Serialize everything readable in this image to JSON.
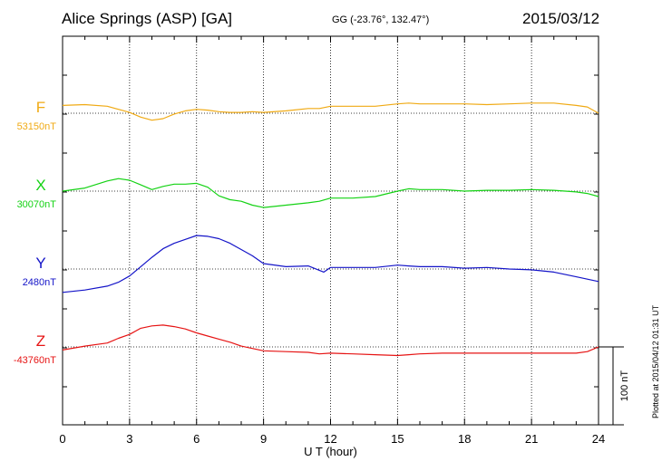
{
  "header": {
    "title": "Alice Springs (ASP)  [GA]",
    "coords": "GG (-23.76°, 132.47°)",
    "date": "2015/03/12"
  },
  "plot_note": "Plotted at 2015/04/12 01:31  UT",
  "colors": {
    "F": "#f0aa14",
    "X": "#14d214",
    "Y": "#1414c8",
    "Z": "#e61414"
  },
  "chart_data": {
    "type": "line",
    "xlabel": "U T (hour)",
    "xlim": [
      0,
      24
    ],
    "xticks": [
      0,
      3,
      6,
      9,
      12,
      15,
      18,
      21,
      24
    ],
    "scale_bar_label": "100 nT",
    "scale_bar_nT": 100,
    "series": [
      {
        "name": "F",
        "baseline_label": "53150nT",
        "baseline_nT": 53150,
        "x": [
          0,
          1,
          2,
          2.5,
          3,
          3.5,
          4,
          4.5,
          5,
          5.5,
          6,
          6.5,
          7,
          7.5,
          8,
          8.5,
          9,
          10,
          11,
          11.5,
          12,
          13,
          14,
          15,
          15.5,
          16,
          17,
          18,
          19,
          20,
          21,
          22,
          23,
          23.5,
          24
        ],
        "y": [
          53160,
          53161,
          53159,
          53155,
          53151,
          53145,
          53141,
          53143,
          53149,
          53153,
          53155,
          53154,
          53152,
          53151,
          53151,
          53152,
          53151,
          53153,
          53156,
          53156,
          53159,
          53159,
          53159,
          53162,
          53163,
          53162,
          53162,
          53162,
          53161,
          53162,
          53163,
          53163,
          53160,
          53158,
          53150
        ]
      },
      {
        "name": "X",
        "baseline_label": "30070nT",
        "baseline_nT": 30070,
        "x": [
          0,
          1,
          2,
          2.5,
          3,
          3.5,
          4,
          4.5,
          5,
          5.5,
          6,
          6.5,
          7,
          7.5,
          8,
          8.5,
          9,
          10,
          11,
          11.5,
          12,
          13,
          14,
          15,
          15.5,
          16,
          17,
          18,
          19,
          20,
          21,
          22,
          23,
          23.5,
          24
        ],
        "y": [
          30070,
          30074,
          30083,
          30086,
          30084,
          30078,
          30072,
          30076,
          30079,
          30079,
          30080,
          30075,
          30064,
          30059,
          30057,
          30052,
          30049,
          30052,
          30055,
          30057,
          30061,
          30061,
          30063,
          30070,
          30073,
          30072,
          30072,
          30070,
          30071,
          30071,
          30072,
          30071,
          30069,
          30067,
          30063
        ]
      },
      {
        "name": "Y",
        "baseline_label": "2480nT",
        "baseline_nT": 2480,
        "x": [
          0,
          1,
          2,
          2.5,
          3,
          3.5,
          4,
          4.5,
          5,
          5.5,
          6,
          6.5,
          7,
          7.5,
          8,
          8.5,
          9,
          10,
          11,
          11.7,
          12,
          13,
          14,
          15,
          15.5,
          16,
          17,
          18,
          19,
          20,
          21,
          22,
          23,
          23.5,
          24
        ],
        "y": [
          2450,
          2453,
          2458,
          2463,
          2471,
          2483,
          2495,
          2506,
          2513,
          2518,
          2523,
          2522,
          2519,
          2513,
          2505,
          2497,
          2487,
          2483,
          2484,
          2476,
          2482,
          2482,
          2482,
          2485,
          2484,
          2483,
          2483,
          2481,
          2482,
          2480,
          2479,
          2476,
          2470,
          2467,
          2464
        ]
      },
      {
        "name": "Z",
        "baseline_label": "-43760nT",
        "baseline_nT": -43760,
        "x": [
          0,
          1,
          2,
          2.5,
          3,
          3.5,
          4,
          4.5,
          5,
          5.5,
          6,
          6.5,
          7,
          7.5,
          8,
          8.5,
          9,
          10,
          11,
          11.5,
          12,
          13,
          14,
          15,
          15.5,
          16,
          17,
          18,
          19,
          20,
          21,
          22,
          23,
          23.5,
          24
        ],
        "y": [
          -43764,
          -43759,
          -43755,
          -43749,
          -43744,
          -43736,
          -43733,
          -43732,
          -43734,
          -43737,
          -43742,
          -43746,
          -43750,
          -43754,
          -43759,
          -43762,
          -43765,
          -43766,
          -43767,
          -43769,
          -43768,
          -43769,
          -43770,
          -43771,
          -43770,
          -43769,
          -43768,
          -43768,
          -43768,
          -43768,
          -43768,
          -43768,
          -43768,
          -43766,
          -43760
        ]
      }
    ]
  }
}
